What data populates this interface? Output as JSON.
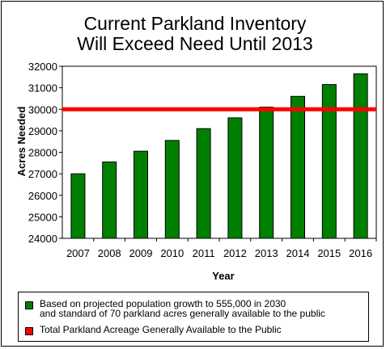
{
  "chart_data": {
    "type": "bar",
    "title_lines": [
      "Current Parkland Inventory",
      "Will Exceed Need Until 2013"
    ],
    "xlabel": "Year",
    "ylabel": "Acres Needed",
    "ylim": [
      24000,
      32000
    ],
    "yticks": [
      24000,
      25000,
      26000,
      27000,
      28000,
      29000,
      30000,
      31000,
      32000
    ],
    "categories": [
      "2007",
      "2008",
      "2009",
      "2010",
      "2011",
      "2012",
      "2013",
      "2014",
      "2015",
      "2016"
    ],
    "series": [
      {
        "name": "Based on projected population growth to 555,000 in 2030\nand standard of 70 parkland acres generally available to the public",
        "color": "#008000",
        "values": [
          27000,
          27550,
          28050,
          28550,
          29100,
          29600,
          30100,
          30600,
          31150,
          31650
        ]
      }
    ],
    "reference_line": {
      "name": "Total Parkland Acreage Generally Available to the Public",
      "color": "#ff0000",
      "value": 30000
    },
    "grid": false,
    "legend_position": "bottom"
  }
}
